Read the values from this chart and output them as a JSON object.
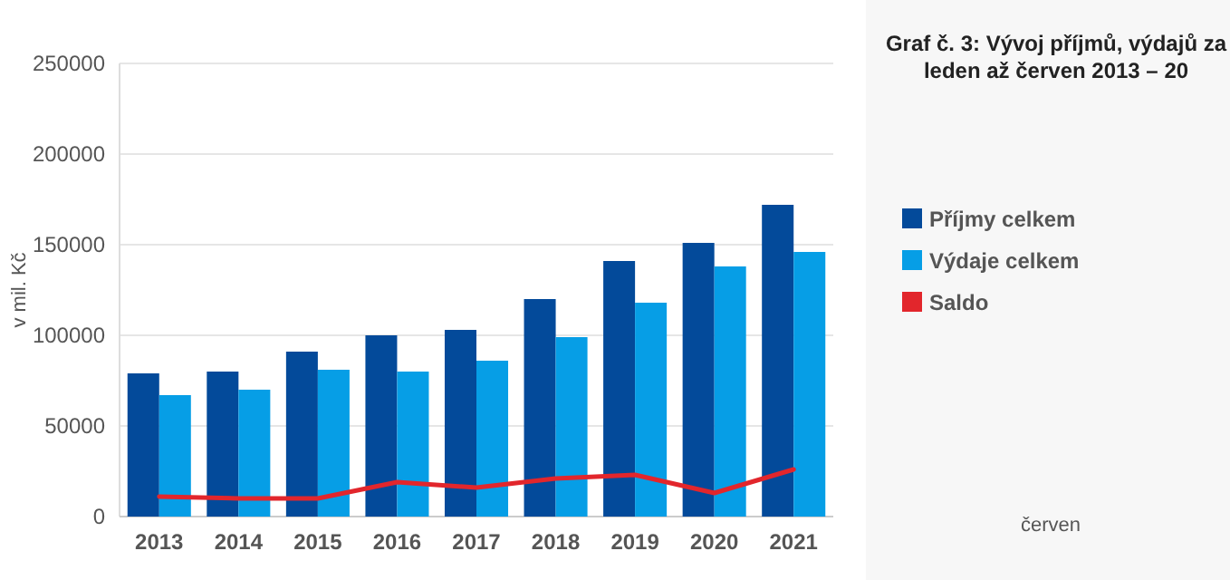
{
  "chart_data": {
    "type": "bar",
    "title": "Graf č. 3: Vývoj příjmů, výdajů za leden až červen 2013 – 20",
    "ylabel": "v mil. Kč",
    "annotations": [
      "červen"
    ],
    "categories": [
      "2013",
      "2014",
      "2015",
      "2016",
      "2017",
      "2018",
      "2019",
      "2020",
      "2021"
    ],
    "series": [
      {
        "name": "Příjmy celkem",
        "color": "#034a9a",
        "values": [
          79000,
          80000,
          91000,
          100000,
          103000,
          120000,
          141000,
          151000,
          172000
        ]
      },
      {
        "name": "Výdaje celkem",
        "color": "#069ee6",
        "values": [
          67000,
          70000,
          81000,
          80000,
          86000,
          99000,
          118000,
          138000,
          146000
        ]
      },
      {
        "name": "Saldo",
        "type": "line",
        "color": "#e2262c",
        "values": [
          11000,
          10000,
          10000,
          19000,
          16000,
          21000,
          23000,
          13000,
          26000
        ]
      }
    ],
    "ylim": [
      0,
      250000
    ],
    "yticks": [
      0,
      50000,
      100000,
      150000,
      200000,
      250000
    ],
    "grid": "y",
    "legend": "right"
  }
}
